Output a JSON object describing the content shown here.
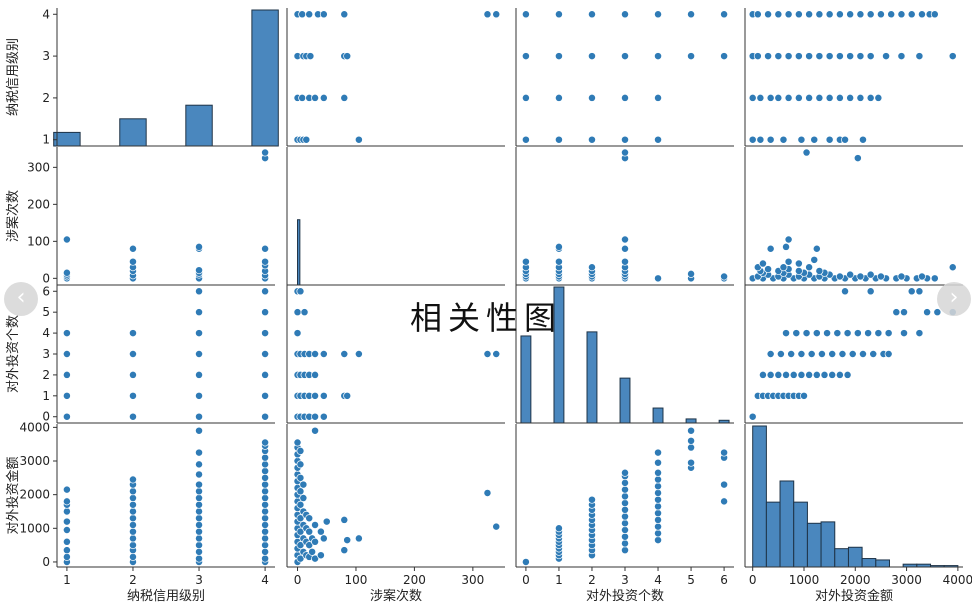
{
  "overlay_title": "相关性图",
  "nav": {
    "prev_icon": "‹",
    "next_icon": "›"
  },
  "chart_data": {
    "type": "scatter",
    "subtype": "pairplot",
    "variables": [
      "纳税信用级别",
      "涉案次数",
      "对外投资个数",
      "对外投资金额"
    ],
    "bar_color": "#4a87be",
    "point_color": "#2f7bb6",
    "axes": {
      "纳税信用级别": {
        "lim": [
          0.85,
          4.15
        ],
        "ticks": [
          1,
          2,
          3,
          4
        ]
      },
      "涉案次数": {
        "lim": [
          -18,
          355
        ],
        "ticks": [
          0,
          100,
          200,
          300
        ]
      },
      "对外投资个数": {
        "lim": [
          -0.3,
          6.3
        ],
        "ticks": [
          0,
          1,
          2,
          3,
          4,
          5,
          6
        ]
      },
      "对外投资金额": {
        "lim": [
          -150,
          4100
        ],
        "ticks": [
          0,
          1000,
          2000,
          3000,
          4000
        ]
      }
    },
    "histograms": {
      "纳税信用级别": {
        "bins": [
          [
            0.8,
            1.2
          ],
          [
            1.8,
            2.2
          ],
          [
            2.8,
            3.2
          ],
          [
            3.8,
            4.2
          ]
        ],
        "heights": [
          0.1,
          0.2,
          0.3,
          1.0
        ]
      },
      "涉案次数": {
        "bins": [
          [
            0,
            4
          ]
        ],
        "heights": [
          0.48
        ]
      },
      "对外投资个数": {
        "bins": [
          [
            -0.15,
            0.15
          ],
          [
            0.85,
            1.15
          ],
          [
            1.85,
            2.15
          ],
          [
            2.85,
            3.15
          ],
          [
            3.85,
            4.15
          ],
          [
            4.85,
            5.15
          ],
          [
            5.85,
            6.15
          ]
        ],
        "heights": [
          0.64,
          1.0,
          0.67,
          0.33,
          0.11,
          0.03,
          0.02
        ]
      },
      "对外投资金额": {
        "bins": [
          [
            0,
            267
          ],
          [
            267,
            533
          ],
          [
            533,
            800
          ],
          [
            800,
            1067
          ],
          [
            1067,
            1333
          ],
          [
            1333,
            1600
          ],
          [
            1600,
            1867
          ],
          [
            1867,
            2133
          ],
          [
            2133,
            2400
          ],
          [
            2400,
            2667
          ],
          [
            2667,
            2933
          ],
          [
            2933,
            3200
          ],
          [
            3200,
            3467
          ],
          [
            3467,
            3733
          ],
          [
            3733,
            4000
          ]
        ],
        "heights": [
          1.0,
          0.46,
          0.61,
          0.46,
          0.31,
          0.32,
          0.13,
          0.14,
          0.06,
          0.05,
          0.0,
          0.02,
          0.02,
          0.01,
          0.01
        ]
      }
    },
    "pairs": {
      "纳税信用级别__涉案次数": [
        [
          1,
          0
        ],
        [
          1,
          5
        ],
        [
          1,
          10
        ],
        [
          1,
          15
        ],
        [
          1,
          105
        ],
        [
          2,
          0
        ],
        [
          2,
          8
        ],
        [
          2,
          20
        ],
        [
          2,
          30
        ],
        [
          2,
          45
        ],
        [
          2,
          80
        ],
        [
          3,
          0
        ],
        [
          3,
          10
        ],
        [
          3,
          15
        ],
        [
          3,
          22
        ],
        [
          3,
          80
        ],
        [
          3,
          85
        ],
        [
          4,
          0
        ],
        [
          4,
          8
        ],
        [
          4,
          20
        ],
        [
          4,
          35
        ],
        [
          4,
          45
        ],
        [
          4,
          80
        ],
        [
          4,
          325
        ],
        [
          4,
          340
        ]
      ],
      "纳税信用级别__对外投资个数": [
        [
          1,
          0
        ],
        [
          1,
          1
        ],
        [
          1,
          2
        ],
        [
          1,
          3
        ],
        [
          1,
          4
        ],
        [
          2,
          0
        ],
        [
          2,
          1
        ],
        [
          2,
          2
        ],
        [
          2,
          3
        ],
        [
          2,
          4
        ],
        [
          3,
          0
        ],
        [
          3,
          1
        ],
        [
          3,
          2
        ],
        [
          3,
          3
        ],
        [
          3,
          4
        ],
        [
          3,
          5
        ],
        [
          3,
          6
        ],
        [
          4,
          0
        ],
        [
          4,
          1
        ],
        [
          4,
          2
        ],
        [
          4,
          3
        ],
        [
          4,
          4
        ],
        [
          4,
          5
        ],
        [
          4,
          6
        ]
      ],
      "纳税信用级别__对外投资金额": [
        [
          1,
          0
        ],
        [
          1,
          150
        ],
        [
          1,
          350
        ],
        [
          1,
          600
        ],
        [
          1,
          950
        ],
        [
          1,
          1200
        ],
        [
          1,
          1500
        ],
        [
          1,
          1700
        ],
        [
          1,
          1800
        ],
        [
          1,
          2150
        ],
        [
          2,
          0
        ],
        [
          2,
          150
        ],
        [
          2,
          350
        ],
        [
          2,
          500
        ],
        [
          2,
          700
        ],
        [
          2,
          900
        ],
        [
          2,
          1100
        ],
        [
          2,
          1300
        ],
        [
          2,
          1500
        ],
        [
          2,
          1700
        ],
        [
          2,
          1900
        ],
        [
          2,
          2100
        ],
        [
          2,
          2300
        ],
        [
          2,
          2450
        ],
        [
          3,
          0
        ],
        [
          3,
          100
        ],
        [
          3,
          300
        ],
        [
          3,
          500
        ],
        [
          3,
          700
        ],
        [
          3,
          900
        ],
        [
          3,
          1100
        ],
        [
          3,
          1300
        ],
        [
          3,
          1500
        ],
        [
          3,
          1700
        ],
        [
          3,
          1900
        ],
        [
          3,
          2100
        ],
        [
          3,
          2300
        ],
        [
          3,
          2600
        ],
        [
          3,
          2900
        ],
        [
          3,
          3250
        ],
        [
          3,
          3900
        ],
        [
          4,
          0
        ],
        [
          4,
          100
        ],
        [
          4,
          300
        ],
        [
          4,
          500
        ],
        [
          4,
          700
        ],
        [
          4,
          900
        ],
        [
          4,
          1100
        ],
        [
          4,
          1300
        ],
        [
          4,
          1500
        ],
        [
          4,
          1700
        ],
        [
          4,
          1900
        ],
        [
          4,
          2100
        ],
        [
          4,
          2300
        ],
        [
          4,
          2500
        ],
        [
          4,
          2700
        ],
        [
          4,
          2900
        ],
        [
          4,
          3100
        ],
        [
          4,
          3300
        ],
        [
          4,
          3450
        ],
        [
          4,
          3550
        ]
      ],
      "涉案次数__对外投资个数": [
        [
          0,
          0
        ],
        [
          0,
          1
        ],
        [
          0,
          2
        ],
        [
          0,
          3
        ],
        [
          0,
          4
        ],
        [
          0,
          5
        ],
        [
          0,
          6
        ],
        [
          5,
          0
        ],
        [
          5,
          1
        ],
        [
          5,
          2
        ],
        [
          5,
          3
        ],
        [
          5,
          6
        ],
        [
          12,
          0
        ],
        [
          12,
          1
        ],
        [
          12,
          2
        ],
        [
          12,
          3
        ],
        [
          12,
          5
        ],
        [
          20,
          0
        ],
        [
          20,
          1
        ],
        [
          20,
          2
        ],
        [
          20,
          3
        ],
        [
          30,
          0
        ],
        [
          30,
          1
        ],
        [
          30,
          2
        ],
        [
          30,
          3
        ],
        [
          45,
          0
        ],
        [
          45,
          1
        ],
        [
          45,
          3
        ],
        [
          80,
          1
        ],
        [
          80,
          3
        ],
        [
          85,
          1
        ],
        [
          105,
          3
        ],
        [
          325,
          3
        ],
        [
          340,
          3
        ]
      ],
      "涉案次数__对外投资金额": [
        [
          0,
          0
        ],
        [
          0,
          200
        ],
        [
          0,
          400
        ],
        [
          0,
          600
        ],
        [
          0,
          800
        ],
        [
          0,
          1000
        ],
        [
          0,
          1200
        ],
        [
          0,
          1400
        ],
        [
          0,
          1600
        ],
        [
          0,
          1800
        ],
        [
          0,
          2000
        ],
        [
          0,
          2200
        ],
        [
          0,
          2400
        ],
        [
          0,
          2600
        ],
        [
          0,
          2800
        ],
        [
          0,
          3000
        ],
        [
          0,
          3200
        ],
        [
          0,
          3400
        ],
        [
          0,
          3550
        ],
        [
          5,
          100
        ],
        [
          5,
          500
        ],
        [
          5,
          900
        ],
        [
          5,
          1300
        ],
        [
          5,
          1700
        ],
        [
          5,
          2100
        ],
        [
          5,
          2500
        ],
        [
          5,
          2900
        ],
        [
          5,
          3300
        ],
        [
          10,
          300
        ],
        [
          10,
          700
        ],
        [
          10,
          1100
        ],
        [
          10,
          1500
        ],
        [
          10,
          1900
        ],
        [
          10,
          2300
        ],
        [
          15,
          200
        ],
        [
          15,
          600
        ],
        [
          15,
          1000
        ],
        [
          15,
          1400
        ],
        [
          20,
          150
        ],
        [
          20,
          500
        ],
        [
          20,
          900
        ],
        [
          20,
          1300
        ],
        [
          25,
          300
        ],
        [
          25,
          700
        ],
        [
          30,
          100
        ],
        [
          30,
          600
        ],
        [
          30,
          1100
        ],
        [
          30,
          3900
        ],
        [
          40,
          200
        ],
        [
          40,
          900
        ],
        [
          45,
          700
        ],
        [
          50,
          1200
        ],
        [
          80,
          350
        ],
        [
          80,
          1250
        ],
        [
          85,
          650
        ],
        [
          105,
          700
        ],
        [
          325,
          2050
        ],
        [
          340,
          1050
        ]
      ],
      "对外投资个数__对外投资金额": [
        [
          0,
          0
        ],
        [
          1,
          100
        ],
        [
          1,
          200
        ],
        [
          1,
          300
        ],
        [
          1,
          400
        ],
        [
          1,
          500
        ],
        [
          1,
          600
        ],
        [
          1,
          700
        ],
        [
          1,
          800
        ],
        [
          1,
          900
        ],
        [
          1,
          1000
        ],
        [
          2,
          200
        ],
        [
          2,
          350
        ],
        [
          2,
          500
        ],
        [
          2,
          650
        ],
        [
          2,
          800
        ],
        [
          2,
          950
        ],
        [
          2,
          1100
        ],
        [
          2,
          1250
        ],
        [
          2,
          1400
        ],
        [
          2,
          1550
        ],
        [
          2,
          1700
        ],
        [
          2,
          1850
        ],
        [
          3,
          350
        ],
        [
          3,
          550
        ],
        [
          3,
          750
        ],
        [
          3,
          950
        ],
        [
          3,
          1150
        ],
        [
          3,
          1350
        ],
        [
          3,
          1550
        ],
        [
          3,
          1750
        ],
        [
          3,
          1950
        ],
        [
          3,
          2150
        ],
        [
          3,
          2350
        ],
        [
          3,
          2550
        ],
        [
          3,
          2650
        ],
        [
          4,
          650
        ],
        [
          4,
          850
        ],
        [
          4,
          1050
        ],
        [
          4,
          1250
        ],
        [
          4,
          1450
        ],
        [
          4,
          1650
        ],
        [
          4,
          1850
        ],
        [
          4,
          2050
        ],
        [
          4,
          2250
        ],
        [
          4,
          2450
        ],
        [
          4,
          2650
        ],
        [
          4,
          2950
        ],
        [
          4,
          3250
        ],
        [
          5,
          2800
        ],
        [
          5,
          2950
        ],
        [
          5,
          3400
        ],
        [
          5,
          3600
        ],
        [
          5,
          3900
        ],
        [
          6,
          1800
        ],
        [
          6,
          2300
        ],
        [
          6,
          3100
        ],
        [
          6,
          3250
        ]
      ]
    }
  }
}
